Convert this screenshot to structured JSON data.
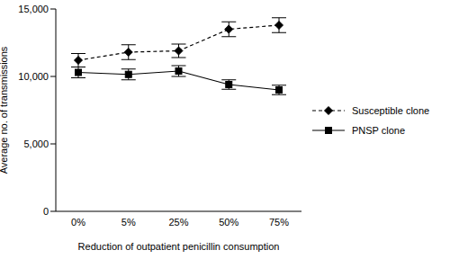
{
  "chart_data": {
    "type": "line",
    "x_label": "Reduction of outpatient penicillin consumption",
    "y_label": "Average no. of transmissions",
    "categories": [
      "0%",
      "5%",
      "25%",
      "50%",
      "75%"
    ],
    "series": [
      {
        "name": "Susceptible clone",
        "color": "#000000",
        "line_style": "dashed",
        "marker": "diamond",
        "values": [
          11200,
          11800,
          11900,
          13500,
          13800
        ],
        "error": [
          500,
          550,
          500,
          550,
          550
        ]
      },
      {
        "name": "PNSP clone",
        "color": "#000000",
        "line_style": "solid",
        "marker": "square",
        "values": [
          10300,
          10150,
          10400,
          9400,
          9000
        ],
        "error": [
          400,
          400,
          400,
          350,
          350
        ]
      }
    ],
    "ylim": [
      0,
      15000
    ],
    "yticks": [
      0,
      {
        "value": 5000,
        "label": "5,000"
      },
      {
        "value": 10000,
        "label": "10,000"
      },
      {
        "value": 15000,
        "label": "15,000"
      }
    ],
    "grid": false,
    "legend": "right"
  }
}
